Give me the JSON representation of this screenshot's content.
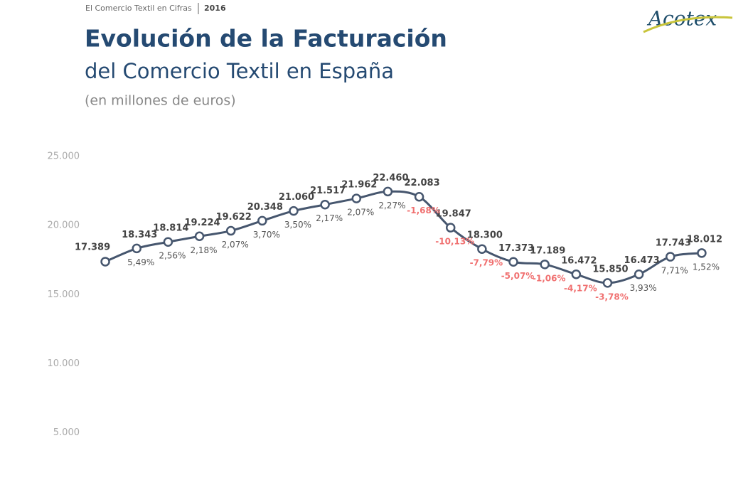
{
  "header": {
    "kicker": "El Comercio Textil en Cifras",
    "year": "2016",
    "logo": "Acotex"
  },
  "chart_data": {
    "type": "line",
    "title": "Evolución de la Facturación",
    "subtitle": "del Comercio Textil en España",
    "unit_note": "(en millones de euros)",
    "categories": [
      null,
      null,
      null,
      null,
      null,
      null,
      null,
      null,
      null,
      null,
      null,
      null,
      null,
      null,
      null,
      null,
      null,
      null,
      null,
      null
    ],
    "series": [
      {
        "name": null,
        "color": "#46566e",
        "values": [
          17389,
          18343,
          18814,
          19224,
          19622,
          20348,
          21060,
          21517,
          21962,
          22460,
          22083,
          19847,
          18300,
          17373,
          17189,
          16472,
          15850,
          16473,
          17743,
          18012
        ],
        "value_labels": [
          "17.389",
          "18.343",
          "18.814",
          "19.224",
          "19.622",
          "20.348",
          "21.060",
          "21.517",
          "21.962",
          "22.460",
          "22.083",
          "19.847",
          "18.300",
          "17.373",
          "17.189",
          "16.472",
          "15.850",
          "16.473",
          "17.743",
          "18.012"
        ]
      }
    ],
    "changes": {
      "values": [
        null,
        5.49,
        2.56,
        2.18,
        2.07,
        3.7,
        3.5,
        2.17,
        2.07,
        2.27,
        -1.68,
        -10.13,
        -7.79,
        -5.07,
        -1.06,
        -4.17,
        -3.78,
        3.93,
        7.71,
        1.52
      ],
      "value_labels": [
        null,
        "5,49%",
        "2,56%",
        "2,18%",
        "2,07%",
        "3,70%",
        "3,50%",
        "2,17%",
        "2,07%",
        "2,27%",
        "-1,68%",
        "-10,13%",
        "-7,79%",
        "-5,07%",
        "-1,06%",
        "-4,17%",
        "-3,78%",
        "3,93%",
        "7,71%",
        "1,52%"
      ],
      "color": "#555555",
      "negative_color": "#f07070"
    },
    "ylim": [
      2000,
      26000
    ],
    "yticks": [
      {
        "value": 5000,
        "label": "5.000"
      },
      {
        "value": 10000,
        "label": "10.000"
      },
      {
        "value": 15000,
        "label": "15.000"
      },
      {
        "value": 20000,
        "label": "20.000"
      },
      {
        "value": 25000,
        "label": "25.000"
      }
    ],
    "grid": false
  }
}
